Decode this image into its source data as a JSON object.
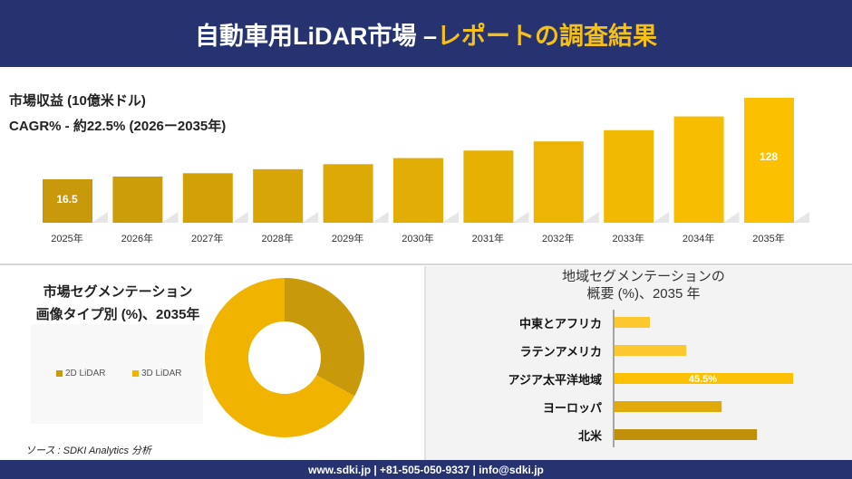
{
  "header": {
    "title_main": "自動車用LiDAR市場 –",
    "title_accent": "レポートの調査結果"
  },
  "colors": {
    "navy": "#263370",
    "accent": "#f5c018",
    "bar_dark": "#c8990a",
    "bar_light": "#fbc100"
  },
  "chart_data": [
    {
      "type": "bar",
      "title": "市場収益 (10億米ドル)",
      "subtitle": "CAGR% - 約22.5% (2026ー2035年)",
      "categories": [
        "2025年",
        "2026年",
        "2027年",
        "2028年",
        "2029年",
        "2030年",
        "2031年",
        "2032年",
        "2033年",
        "2034年",
        "2035年"
      ],
      "values": [
        16.5,
        20.2,
        24.8,
        30.3,
        37.2,
        45.5,
        55.8,
        68.3,
        83.7,
        102.5,
        128
      ],
      "data_labels": {
        "0": "16.5",
        "10": "128"
      }
    },
    {
      "type": "pie",
      "donut": true,
      "title_line1": "市場セグメンテーション",
      "title_line2": "画像タイプ別 (%)、2035年",
      "categories": [
        "2D LiDAR",
        "3D LiDAR"
      ],
      "values": [
        33,
        67
      ],
      "colors": [
        "#c8990a",
        "#f0b400"
      ],
      "legend": "left"
    },
    {
      "type": "bar",
      "orientation": "horizontal",
      "title_line1": "地域セグメンテーションの",
      "title_line2": "概要 (%)、2035 年",
      "categories": [
        "中東とアフリカ",
        "ラテンアメリカ",
        "アジア太平洋地域",
        "ヨーロッパ",
        "北米"
      ],
      "values": [
        9.0,
        18.3,
        45.5,
        27.3,
        36.3
      ],
      "data_labels": {
        "2": "45.5%"
      },
      "colors": [
        "#fbc830",
        "#fbc830",
        "#fbc100",
        "#e0aa0a",
        "#c0900a"
      ]
    }
  ],
  "source": "ソース : SDKI Analytics 分析",
  "footer": "www.sdki.jp | +81-505-050-9337 | info@sdki.jp"
}
